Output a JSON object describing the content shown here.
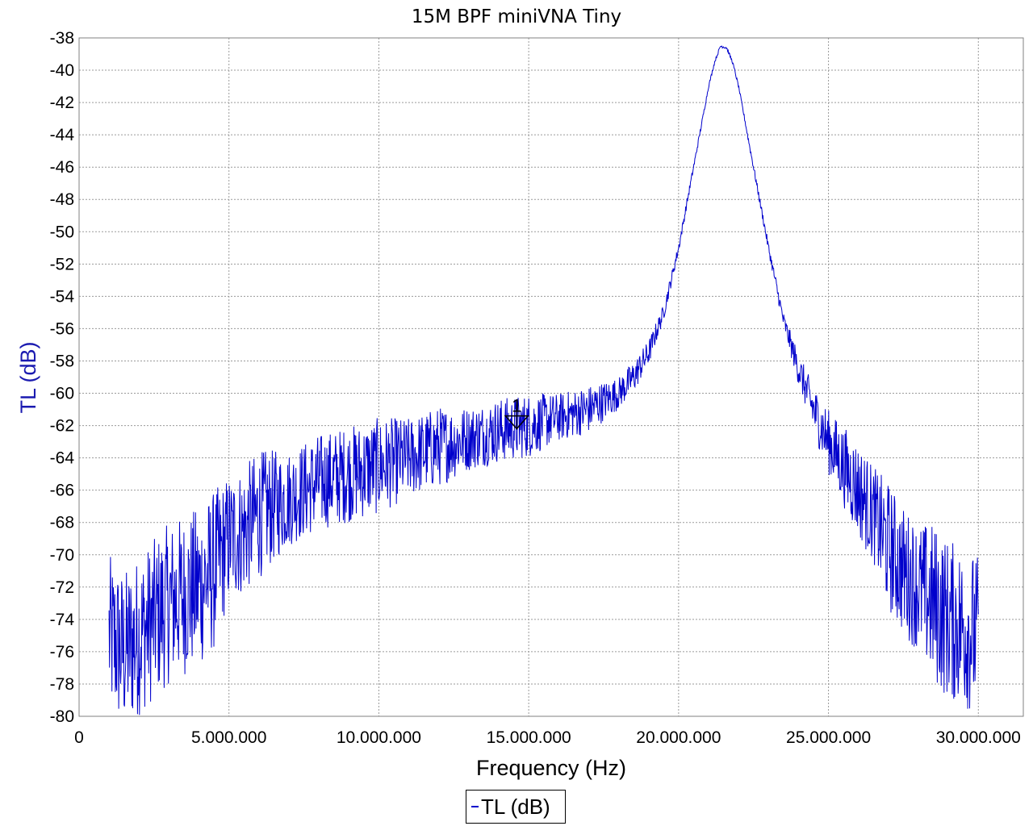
{
  "chart_data": {
    "type": "line",
    "title": "15M BPF miniVNA Tiny",
    "xlabel": "Frequency (Hz)",
    "ylabel": "TL (dB)",
    "xlim": [
      0,
      31500000
    ],
    "ylim": [
      -80,
      -38
    ],
    "x_ticks": [
      0,
      5000000,
      10000000,
      15000000,
      20000000,
      25000000,
      30000000
    ],
    "x_tick_labels": [
      "0",
      "5.000.000",
      "10.000.000",
      "15.000.000",
      "20.000.000",
      "25.000.000",
      "30.000.000"
    ],
    "y_ticks": [
      -38,
      -40,
      -42,
      -44,
      -46,
      -48,
      -50,
      -52,
      -54,
      -56,
      -58,
      -60,
      -62,
      -64,
      -66,
      -68,
      -70,
      -72,
      -74,
      -76,
      -78,
      -80
    ],
    "grid": true,
    "legend": "bottom-center",
    "series": [
      {
        "name": "TL (dB)",
        "color": "#0000cc",
        "x": [
          1000000,
          1500000,
          2000000,
          2500000,
          3000000,
          3500000,
          4000000,
          4500000,
          5000000,
          5500000,
          6000000,
          7000000,
          8000000,
          9000000,
          10000000,
          11000000,
          12000000,
          13000000,
          14000000,
          15000000,
          16000000,
          17000000,
          18000000,
          18500000,
          19000000,
          19500000,
          20000000,
          20500000,
          21000000,
          21200000,
          21400000,
          21600000,
          21800000,
          22000000,
          22500000,
          23000000,
          23500000,
          24000000,
          24500000,
          25000000,
          25500000,
          26000000,
          26500000,
          27000000,
          27500000,
          28000000,
          28500000,
          29000000,
          29500000,
          30000000
        ],
        "values": [
          -75,
          -76,
          -75,
          -74,
          -73,
          -72.5,
          -72,
          -71,
          -69,
          -68.5,
          -67.5,
          -66.5,
          -65.5,
          -65,
          -64.5,
          -64,
          -63.3,
          -62.8,
          -62.3,
          -62,
          -61.5,
          -61,
          -60,
          -59,
          -57.5,
          -55,
          -51,
          -46,
          -41,
          -39.5,
          -38.5,
          -38.6,
          -39.5,
          -41,
          -46,
          -51,
          -55.5,
          -58.5,
          -61,
          -63,
          -64.5,
          -66,
          -67.5,
          -69.5,
          -71,
          -72,
          -73,
          -74,
          -74.5,
          -75
        ],
        "noise_amplitude_db": [
          5,
          5,
          5,
          5,
          5,
          5,
          5,
          5,
          4,
          4,
          4,
          3,
          3,
          3,
          3,
          2.5,
          2.5,
          2,
          2,
          2,
          1.5,
          1.5,
          1,
          1,
          0.8,
          0.5,
          0.3,
          0.2,
          0.1,
          0.1,
          0.1,
          0.1,
          0.1,
          0.1,
          0.2,
          0.3,
          0.5,
          1,
          1.5,
          2,
          2.5,
          3,
          3,
          4,
          4,
          4,
          5,
          5,
          5,
          5
        ]
      }
    ],
    "markers": [
      {
        "label": "1",
        "x": 14600000,
        "y": -61.8
      }
    ]
  }
}
